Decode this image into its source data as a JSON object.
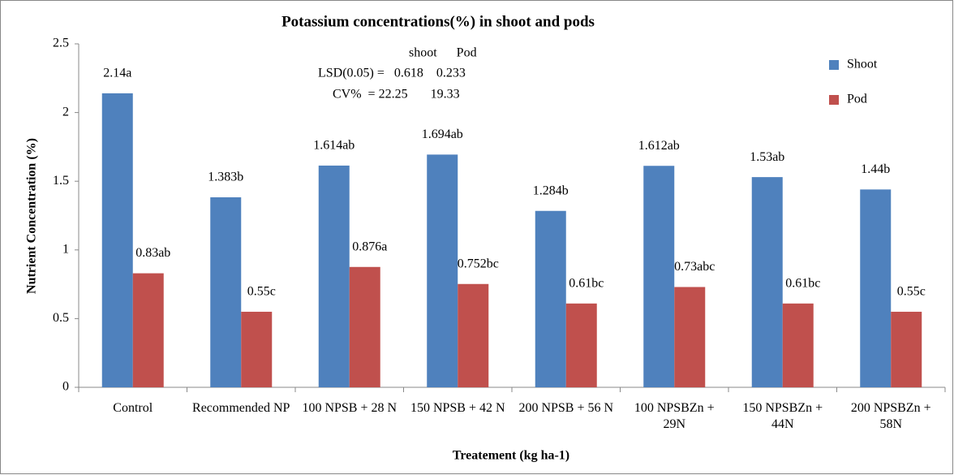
{
  "chart_data": {
    "type": "bar",
    "title": "Potassium concentrations(%) in shoot and pods",
    "x_label": "Treatement (kg ha-1)",
    "y_label": "Nutrient Concentration (%)",
    "annotations": [
      "shoot      Pod",
      "LSD(0.05) =   0.618    0.233",
      "CV%  = 22.25       19.33"
    ],
    "categories": [
      "Control",
      "Recommended NP",
      "100 NPSB + 28 N",
      "150 NPSB + 42 N",
      "200 NPSB + 56 N",
      "100 NPSBZn + 29N",
      "150 NPSBZn + 44N",
      "200 NPSBZn + 58N"
    ],
    "series": [
      {
        "name": "Shoot",
        "color": "#4f81bd",
        "values": [
          2.14,
          1.383,
          1.614,
          1.694,
          1.284,
          1.612,
          1.53,
          1.44
        ],
        "value_labels": [
          "2.14a",
          "1.383b",
          "1.614ab",
          "1.694ab",
          "1.284b",
          "1.612ab",
          "1.53ab",
          "1.44b"
        ]
      },
      {
        "name": "Pod",
        "color": "#c0504d",
        "values": [
          0.83,
          0.55,
          0.876,
          0.752,
          0.61,
          0.73,
          0.61,
          0.55
        ],
        "value_labels": [
          "0.83ab",
          "0.55c",
          "0.876a",
          "0.752bc",
          "0.61bc",
          "0.73abc",
          "0.61bc",
          "0.55c"
        ]
      }
    ],
    "ylim": [
      0,
      2.5
    ],
    "yticks": [
      0,
      0.5,
      1,
      1.5,
      2,
      2.5
    ],
    "grid": false,
    "legend": "top-right"
  }
}
